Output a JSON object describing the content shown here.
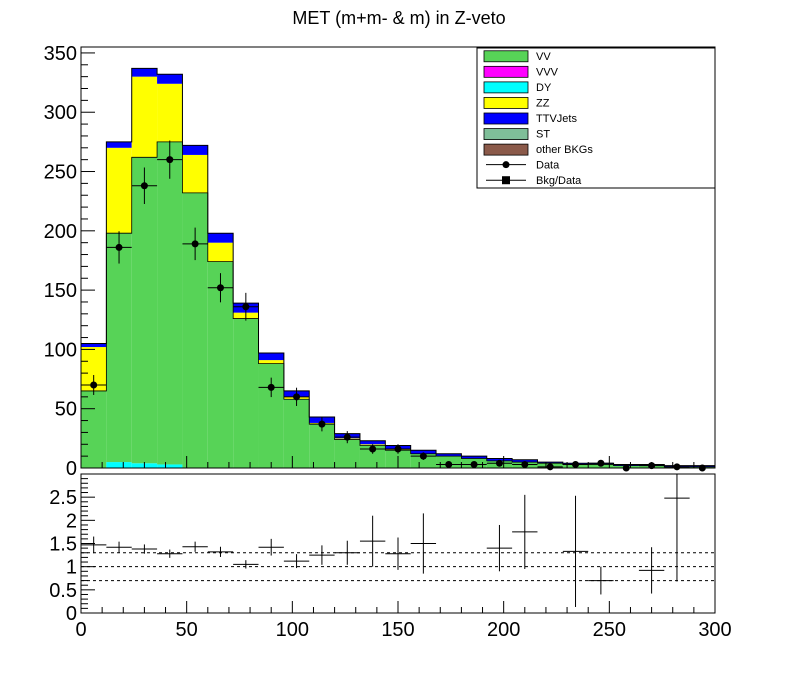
{
  "chart_data": [
    {
      "type": "bar",
      "title": "MET (m+m- & m) in Z-veto",
      "xlim": [
        0,
        300
      ],
      "ylim": [
        0,
        355
      ],
      "ytick_labels": [
        "0",
        "50",
        "100",
        "150",
        "200",
        "250",
        "300",
        "350"
      ],
      "bin_edges": [
        0,
        12,
        24,
        36,
        48,
        60,
        72,
        84,
        96,
        108,
        120,
        132,
        144,
        156,
        168,
        180,
        192,
        204,
        216,
        228,
        240,
        252,
        264,
        276,
        288,
        300
      ],
      "stack_order": [
        "DY",
        "VV",
        "VVV",
        "ZZ",
        "TTVJets",
        "ST",
        "other BKGs"
      ],
      "series": [
        {
          "name": "VV",
          "color": "#57d357",
          "values": [
            65,
            193,
            258,
            272,
            232,
            174,
            126,
            88,
            58,
            37,
            24,
            19,
            15,
            12,
            10,
            8,
            6,
            5,
            4,
            3,
            3,
            2,
            2,
            1,
            1
          ]
        },
        {
          "name": "VVV",
          "color": "#ff00ff",
          "values": [
            0,
            0,
            0,
            0,
            0,
            0,
            0,
            0,
            0,
            0,
            0,
            0,
            0,
            0,
            0,
            0,
            0,
            0,
            0,
            0,
            0,
            0,
            0,
            0,
            0
          ]
        },
        {
          "name": "DY",
          "color": "#00ffff",
          "values": [
            0,
            5,
            4,
            3,
            0,
            0,
            0,
            0,
            0,
            0,
            0,
            0,
            0,
            0,
            0,
            0,
            0,
            0,
            0,
            0,
            0,
            0,
            0,
            0,
            0
          ]
        },
        {
          "name": "ZZ",
          "color": "#ffff00",
          "values": [
            37,
            72,
            68,
            49,
            32,
            16,
            5,
            3,
            2,
            1,
            1,
            1,
            1,
            0,
            0,
            0,
            0,
            0,
            0,
            0,
            0,
            0,
            0,
            0,
            0
          ]
        },
        {
          "name": "TTVJets",
          "color": "#0000ff",
          "values": [
            3,
            5,
            7,
            8,
            8,
            8,
            8,
            6,
            5,
            5,
            4,
            3,
            3,
            3,
            2,
            2,
            2,
            2,
            1,
            1,
            1,
            1,
            1,
            1,
            1
          ]
        },
        {
          "name": "ST",
          "color": "#7fbf99",
          "values": [
            0,
            0,
            0,
            0,
            0,
            0,
            0,
            0,
            0,
            0,
            0,
            0,
            0,
            0,
            0,
            0,
            0,
            0,
            0,
            0,
            0,
            0,
            0,
            0,
            0
          ]
        },
        {
          "name": "other BKGs",
          "color": "#8b5a4a",
          "values": [
            0,
            0,
            0,
            0,
            0,
            0,
            0,
            0,
            0,
            0,
            0,
            0,
            0,
            0,
            0,
            0,
            0,
            0,
            0,
            0,
            0,
            0,
            0,
            0,
            0
          ]
        }
      ],
      "data_points": {
        "name": "Data",
        "x": [
          6,
          18,
          30,
          42,
          54,
          66,
          78,
          90,
          102,
          114,
          126,
          138,
          150,
          162,
          174,
          186,
          198,
          210,
          222,
          234,
          246,
          258,
          270,
          282,
          294
        ],
        "y": [
          70,
          186,
          238,
          260,
          189,
          152,
          136,
          68,
          60,
          37,
          26,
          16,
          16,
          10,
          3,
          3,
          4,
          3,
          1,
          3,
          4,
          0,
          2,
          1,
          0
        ],
        "yerr": [
          8.4,
          13.6,
          15.4,
          16.1,
          13.7,
          12.3,
          11.7,
          8.2,
          7.7,
          6.1,
          5.1,
          4.0,
          4.0,
          3.2,
          1.7,
          1.7,
          2.0,
          1.7,
          1.0,
          1.7,
          2.0,
          0,
          1.4,
          1.0,
          0
        ]
      },
      "legend": {
        "placement": "top-right",
        "entries": [
          "VV",
          "VVV",
          "DY",
          "ZZ",
          "TTVJets",
          "ST",
          "other BKGs",
          "Data",
          "Bkg/Data"
        ]
      }
    },
    {
      "type": "scatter",
      "name": "Bkg/Data",
      "xlim": [
        0,
        300
      ],
      "ylim": [
        0,
        3
      ],
      "ytick_labels": [
        "0",
        "0.5",
        "1",
        "1.5",
        "2",
        "2.5"
      ],
      "xtick_labels": [
        "0",
        "50",
        "100",
        "150",
        "200",
        "250",
        "300"
      ],
      "reference_lines": [
        0.7,
        1.0,
        1.3
      ],
      "x": [
        6,
        18,
        30,
        42,
        54,
        66,
        78,
        90,
        102,
        114,
        126,
        138,
        150,
        162,
        198,
        210,
        234,
        246,
        270,
        282
      ],
      "y": [
        1.47,
        1.42,
        1.38,
        1.28,
        1.43,
        1.32,
        1.05,
        1.42,
        1.12,
        1.25,
        1.3,
        1.55,
        1.28,
        1.5,
        1.4,
        1.75,
        1.33,
        0.7,
        0.92,
        2.48
      ],
      "yerr": [
        0.18,
        0.12,
        0.1,
        0.09,
        0.11,
        0.11,
        0.09,
        0.18,
        0.15,
        0.21,
        0.26,
        0.55,
        0.35,
        0.65,
        0.5,
        0.8,
        1.2,
        0.3,
        0.5,
        1.8
      ]
    }
  ]
}
